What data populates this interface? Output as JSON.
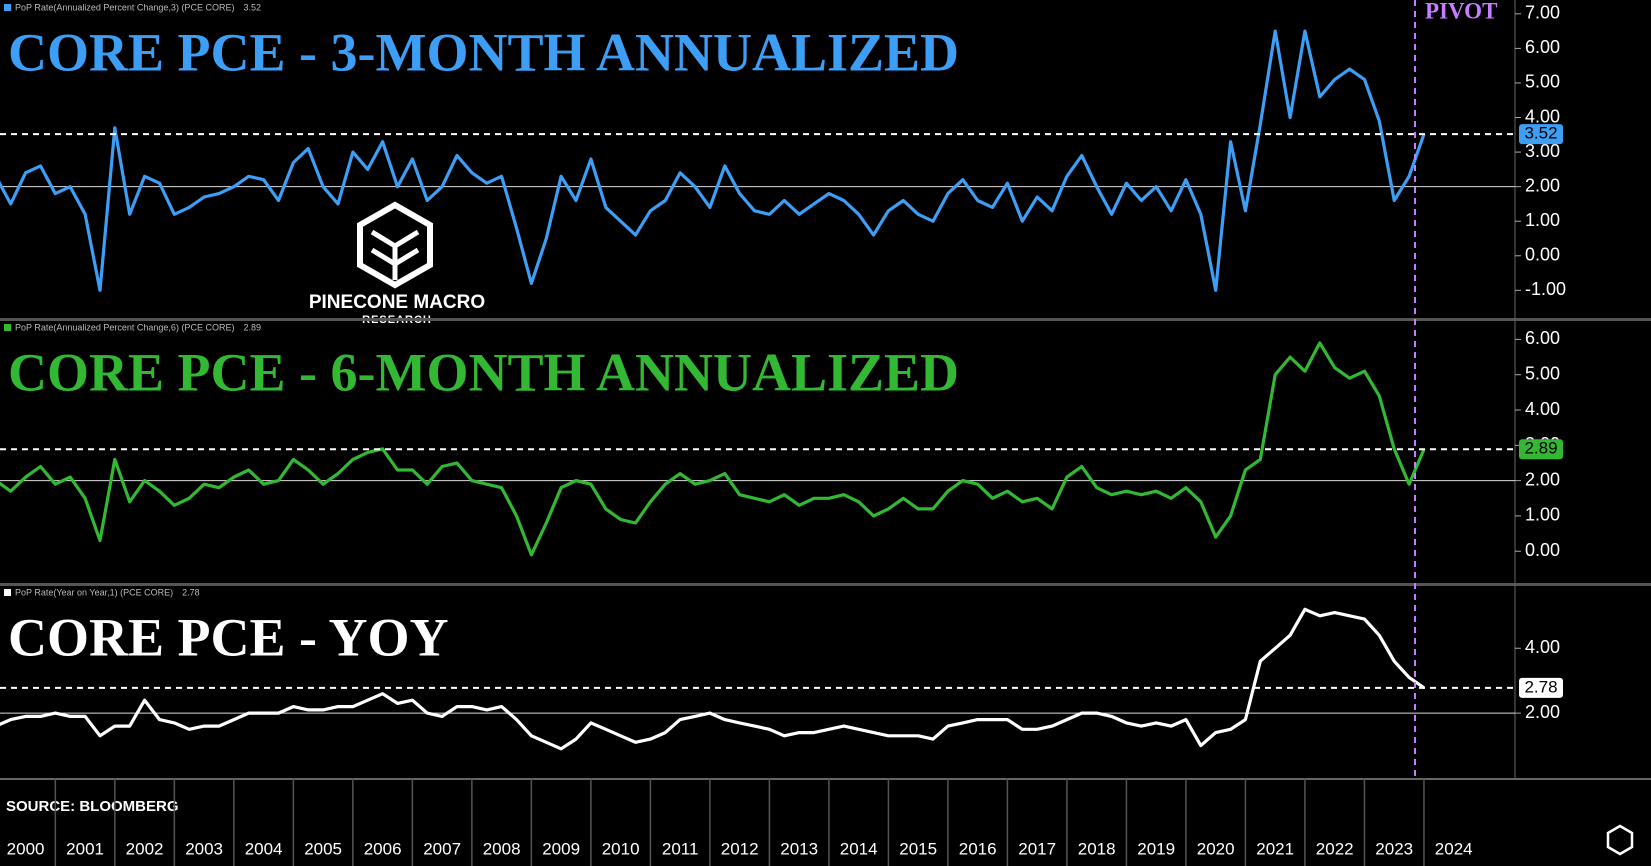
{
  "x_axis": {
    "x": [
      2000,
      2000.25,
      2000.5,
      2000.75,
      2001,
      2001.25,
      2001.5,
      2001.75,
      2002,
      2002.25,
      2002.5,
      2002.75,
      2003,
      2003.25,
      2003.5,
      2003.75,
      2004,
      2004.25,
      2004.5,
      2004.75,
      2005,
      2005.25,
      2005.5,
      2005.75,
      2006,
      2006.25,
      2006.5,
      2006.75,
      2007,
      2007.25,
      2007.5,
      2007.75,
      2008,
      2008.25,
      2008.5,
      2008.75,
      2009,
      2009.25,
      2009.5,
      2009.75,
      2010,
      2010.25,
      2010.5,
      2010.75,
      2011,
      2011.25,
      2011.5,
      2011.75,
      2012,
      2012.25,
      2012.5,
      2012.75,
      2013,
      2013.25,
      2013.5,
      2013.75,
      2014,
      2014.25,
      2014.5,
      2014.75,
      2015,
      2015.25,
      2015.5,
      2015.75,
      2016,
      2016.25,
      2016.5,
      2016.75,
      2017,
      2017.25,
      2017.5,
      2017.75,
      2018,
      2018.25,
      2018.5,
      2018.75,
      2019,
      2019.25,
      2019.5,
      2019.75,
      2020,
      2020.25,
      2020.5,
      2020.75,
      2021,
      2021.25,
      2021.5,
      2021.75,
      2022,
      2022.25,
      2022.5,
      2022.75,
      2023,
      2023.25,
      2023.5,
      2023.75,
      2024
    ],
    "xlim": [
      2000.07,
      2025.53
    ],
    "xticks": [
      2000,
      2001,
      2002,
      2003,
      2004,
      2005,
      2006,
      2007,
      2008,
      2009,
      2010,
      2011,
      2012,
      2013,
      2014,
      2015,
      2016,
      2017,
      2018,
      2019,
      2020,
      2021,
      2022,
      2023,
      2024
    ]
  },
  "annotation": {
    "text": "PIVOT",
    "x": 2023.85,
    "color": "#c77dff"
  },
  "source": "SOURCE: BLOOMBERG",
  "logo": {
    "name": "PINECONE MACRO",
    "subtitle": "RESEARCH"
  },
  "chart_data": [
    {
      "type": "line",
      "title": "CORE PCE - 3-MONTH ANNUALIZED",
      "title_color": "#3d9ef5",
      "ylim": [
        -1.8,
        7.4
      ],
      "yticks": [
        {
          "value": 7,
          "label": "7.00"
        },
        {
          "value": 6,
          "label": "6.00"
        },
        {
          "value": 5,
          "label": "5.00"
        },
        {
          "value": 4,
          "label": "4.00"
        },
        {
          "value": 3,
          "label": "3.00"
        },
        {
          "value": 2,
          "label": "2.00"
        },
        {
          "value": 1,
          "label": "1.00"
        },
        {
          "value": 0,
          "label": "0.00"
        },
        {
          "value": -1,
          "label": "-1.00"
        }
      ],
      "reference_line": 2,
      "series": [
        {
          "name": "PoP Rate(Annualized Percent Change,3) (PCE CORE)",
          "color": "#3d9ef5",
          "values": [
            2.3,
            1.5,
            2.4,
            2.6,
            1.8,
            2.0,
            1.2,
            -1.0,
            3.7,
            1.2,
            2.3,
            2.1,
            1.2,
            1.4,
            1.7,
            1.8,
            2.0,
            2.3,
            2.2,
            1.6,
            2.7,
            3.1,
            2.0,
            1.5,
            3.0,
            2.5,
            3.3,
            2.0,
            2.8,
            1.6,
            2.0,
            2.9,
            2.4,
            2.1,
            2.3,
            0.8,
            -0.8,
            0.5,
            2.3,
            1.6,
            2.8,
            1.4,
            1.0,
            0.6,
            1.3,
            1.6,
            2.4,
            2.0,
            1.4,
            2.6,
            1.8,
            1.3,
            1.2,
            1.6,
            1.2,
            1.5,
            1.8,
            1.6,
            1.2,
            0.6,
            1.3,
            1.6,
            1.2,
            1.0,
            1.8,
            2.2,
            1.6,
            1.4,
            2.1,
            1.0,
            1.7,
            1.3,
            2.3,
            2.9,
            2.0,
            1.2,
            2.1,
            1.6,
            2.0,
            1.3,
            2.2,
            1.2,
            -1.0,
            3.3,
            1.3,
            3.8,
            6.5,
            4.0,
            6.5,
            4.6,
            5.1,
            5.4,
            5.1,
            3.9,
            1.6,
            2.3,
            3.52
          ]
        }
      ]
    },
    {
      "type": "line",
      "title": "CORE PCE - 6-MONTH ANNUALIZED",
      "title_color": "#33b833",
      "ylim": [
        -0.9,
        6.55
      ],
      "yticks": [
        {
          "value": 6,
          "label": "6.00"
        },
        {
          "value": 5,
          "label": "5.00"
        },
        {
          "value": 4,
          "label": "4.00"
        },
        {
          "value": 3,
          "label": "3.00"
        },
        {
          "value": 2,
          "label": "2.00"
        },
        {
          "value": 1,
          "label": "1.00"
        },
        {
          "value": 0,
          "label": "0.00"
        }
      ],
      "reference_line": 2,
      "series": [
        {
          "name": "PoP Rate(Annualized Percent Change,6) (PCE CORE)",
          "color": "#33b833",
          "values": [
            2.0,
            1.7,
            2.1,
            2.4,
            1.9,
            2.1,
            1.5,
            0.3,
            2.6,
            1.4,
            2.0,
            1.7,
            1.3,
            1.5,
            1.9,
            1.8,
            2.1,
            2.3,
            1.9,
            2.0,
            2.6,
            2.3,
            1.9,
            2.2,
            2.6,
            2.8,
            2.9,
            2.3,
            2.3,
            1.9,
            2.4,
            2.5,
            2.0,
            1.9,
            1.8,
            1.0,
            -0.1,
            0.8,
            1.8,
            2.0,
            1.9,
            1.2,
            0.9,
            0.8,
            1.4,
            1.9,
            2.2,
            1.9,
            2.0,
            2.2,
            1.6,
            1.5,
            1.4,
            1.6,
            1.3,
            1.5,
            1.5,
            1.6,
            1.4,
            1.0,
            1.2,
            1.5,
            1.2,
            1.2,
            1.7,
            2.0,
            1.9,
            1.5,
            1.7,
            1.4,
            1.5,
            1.2,
            2.1,
            2.4,
            1.8,
            1.6,
            1.7,
            1.6,
            1.7,
            1.5,
            1.8,
            1.4,
            0.4,
            1.0,
            2.3,
            2.6,
            5.0,
            5.5,
            5.1,
            5.9,
            5.2,
            4.9,
            5.1,
            4.4,
            2.9,
            1.9,
            2.89
          ]
        }
      ]
    },
    {
      "type": "line",
      "title": "CORE PCE - YOY",
      "title_color": "#ffffff",
      "ylim": [
        0,
        5.95
      ],
      "yticks": [
        {
          "value": 4,
          "label": "4.00"
        },
        {
          "value": 2,
          "label": "2.00"
        }
      ],
      "reference_line": 2,
      "series": [
        {
          "name": "PoP Rate(Year on Year,1) (PCE CORE)",
          "color": "#ffffff",
          "values": [
            1.6,
            1.8,
            1.9,
            1.9,
            2.0,
            1.9,
            1.9,
            1.3,
            1.6,
            1.6,
            2.4,
            1.8,
            1.7,
            1.5,
            1.6,
            1.6,
            1.8,
            2.0,
            2.0,
            2.0,
            2.2,
            2.1,
            2.1,
            2.2,
            2.2,
            2.4,
            2.6,
            2.3,
            2.4,
            2.0,
            1.9,
            2.2,
            2.2,
            2.1,
            2.2,
            1.8,
            1.3,
            1.1,
            0.9,
            1.2,
            1.7,
            1.5,
            1.3,
            1.1,
            1.2,
            1.4,
            1.8,
            1.9,
            2.0,
            1.8,
            1.7,
            1.6,
            1.5,
            1.3,
            1.4,
            1.4,
            1.5,
            1.6,
            1.5,
            1.4,
            1.3,
            1.3,
            1.3,
            1.2,
            1.6,
            1.7,
            1.8,
            1.8,
            1.8,
            1.5,
            1.5,
            1.6,
            1.8,
            2.0,
            2.0,
            1.9,
            1.7,
            1.6,
            1.7,
            1.6,
            1.8,
            1.0,
            1.4,
            1.5,
            1.8,
            3.6,
            4.0,
            4.4,
            5.2,
            5.0,
            5.1,
            5.0,
            4.9,
            4.4,
            3.6,
            3.1,
            2.78
          ]
        }
      ]
    }
  ]
}
